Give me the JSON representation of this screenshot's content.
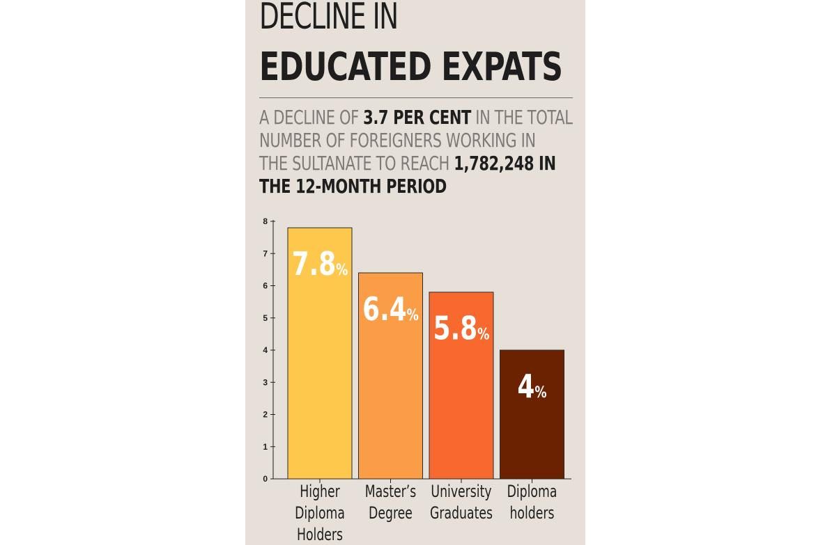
{
  "header": {
    "title_line1": "DECLINE IN",
    "title_line2": "EDUCATED EXPATS"
  },
  "subtitle": {
    "part1": "A DECLINE OF ",
    "bold1": "3.7 PER CENT",
    "part2": " IN THE TOTAL",
    "line2": "NUMBER OF FOREIGNERS WORKING IN",
    "part3": "THE SULTANATE TO REACH ",
    "bold2": "1,782,248 IN",
    "bold3": "THE 12-MONTH PERIOD"
  },
  "colors": {
    "background": "#e6e0d8",
    "bars": [
      "#fdc84b",
      "#fb9c47",
      "#f8692f",
      "#6b2200"
    ]
  },
  "chart_data": {
    "type": "bar",
    "title": "",
    "xlabel": "",
    "ylabel": "",
    "ylim": [
      0,
      8
    ],
    "yticks": [
      0,
      1,
      2,
      3,
      4,
      5,
      6,
      7,
      8
    ],
    "categories": [
      [
        "Higher",
        "Diploma",
        "Holders"
      ],
      [
        "Master’s",
        "Degree"
      ],
      [
        "University",
        "Graduates"
      ],
      [
        "Diploma",
        "holders"
      ]
    ],
    "values": [
      7.8,
      6.4,
      5.8,
      4
    ],
    "value_labels": [
      "7.8",
      "6.4",
      "5.8",
      "4"
    ],
    "value_suffix": "%"
  }
}
